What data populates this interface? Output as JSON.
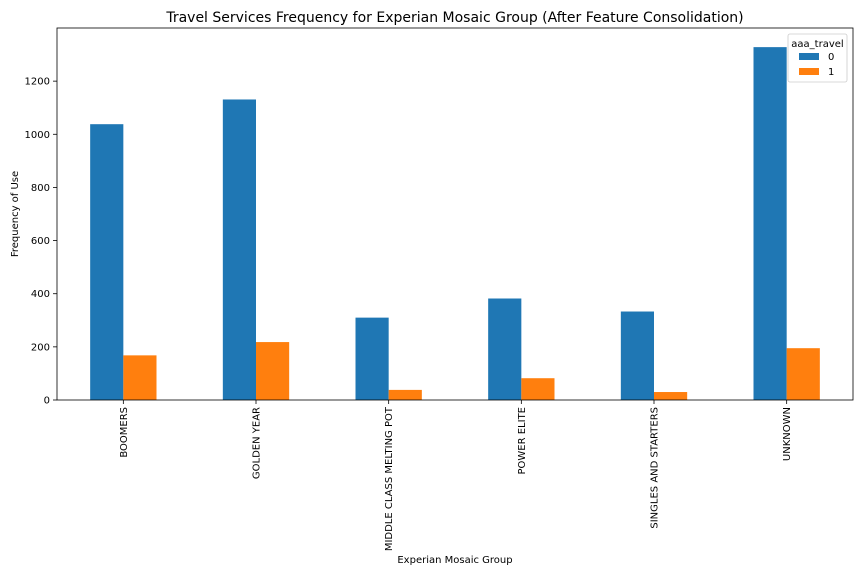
{
  "chart_data": {
    "type": "bar",
    "title": "Travel Services Frequency for Experian Mosaic Group (After Feature Consolidation)",
    "xlabel": "Experian Mosaic Group",
    "ylabel": "Frequency of Use",
    "categories": [
      "BOOMERS",
      "GOLDEN YEAR",
      "MIDDLE CLASS MELTING POT",
      "POWER ELITE",
      "SINGLES AND STARTERS",
      "UNKNOWN"
    ],
    "series": [
      {
        "name": "0",
        "color": "#1f77b4",
        "values": [
          1038,
          1131,
          310,
          382,
          333,
          1328
        ]
      },
      {
        "name": "1",
        "color": "#ff7f0e",
        "values": [
          168,
          218,
          38,
          82,
          30,
          195
        ]
      }
    ],
    "ylim": [
      0,
      1400
    ],
    "yticks": [
      0,
      200,
      400,
      600,
      800,
      1000,
      1200
    ],
    "grid": false,
    "legend": {
      "title": "aaa_travel",
      "position": "top-right"
    }
  }
}
